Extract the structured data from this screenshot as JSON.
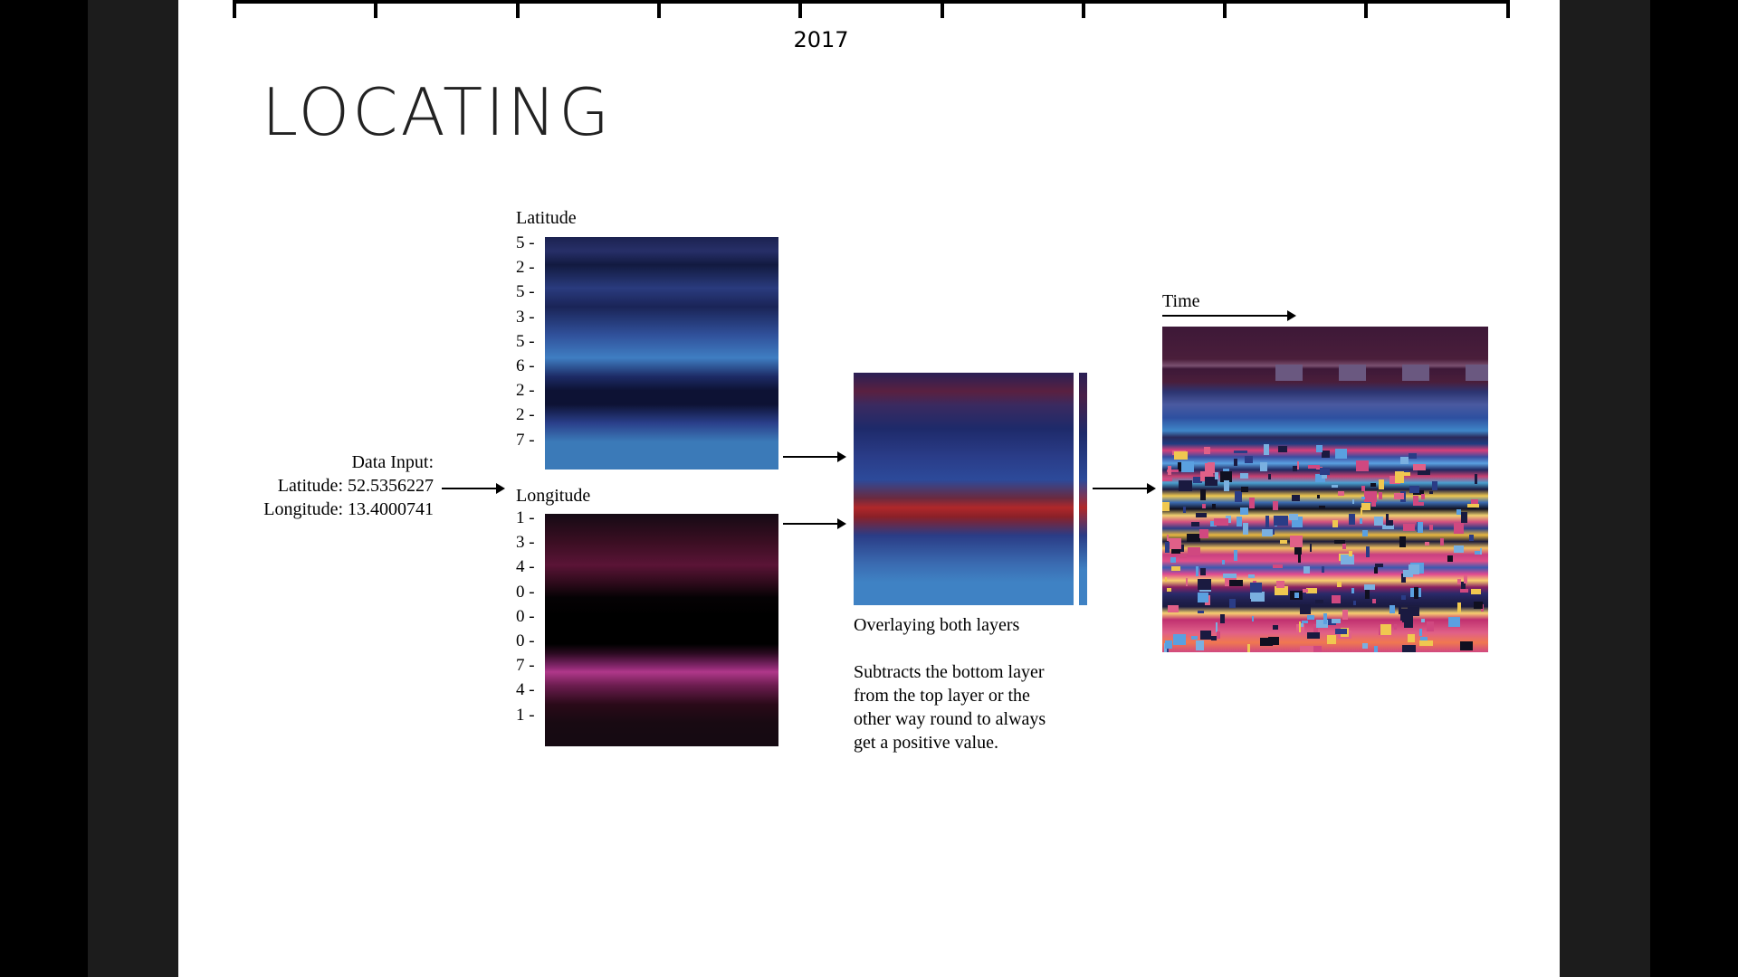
{
  "timeline": {
    "year": "2017",
    "tick_count": 10
  },
  "slide": {
    "title": "LOCATING"
  },
  "input": {
    "heading": "Data Input:",
    "latitude": "Latitude: 52.5356227",
    "longitude": "Longitude: 13.4000741"
  },
  "latitude_layer": {
    "label": "Latitude",
    "digits": [
      "5 -",
      "2 -",
      "5 -",
      "3 -",
      "5 -",
      "6 -",
      "2 -",
      "2 -",
      "7 -"
    ]
  },
  "longitude_layer": {
    "label": "Longitude",
    "digits": [
      "1 -",
      "3 -",
      "4 -",
      "0 -",
      "0 -",
      "0 -",
      "7 -",
      "4 -",
      "1 -"
    ]
  },
  "overlay": {
    "caption": "Overlaying both layers",
    "description": [
      "Subtracts the bottom layer",
      "from the top layer or the",
      "other way round to always",
      "get a positive value."
    ]
  },
  "result": {
    "time_label": "Time"
  },
  "colors": {
    "background": "#000000",
    "frame": "#1c1c1c",
    "slide": "#ffffff",
    "latitude_blue": "#3b7ab8",
    "longitude_magenta": "#b0388a",
    "overlay_red": "#b0282a"
  }
}
